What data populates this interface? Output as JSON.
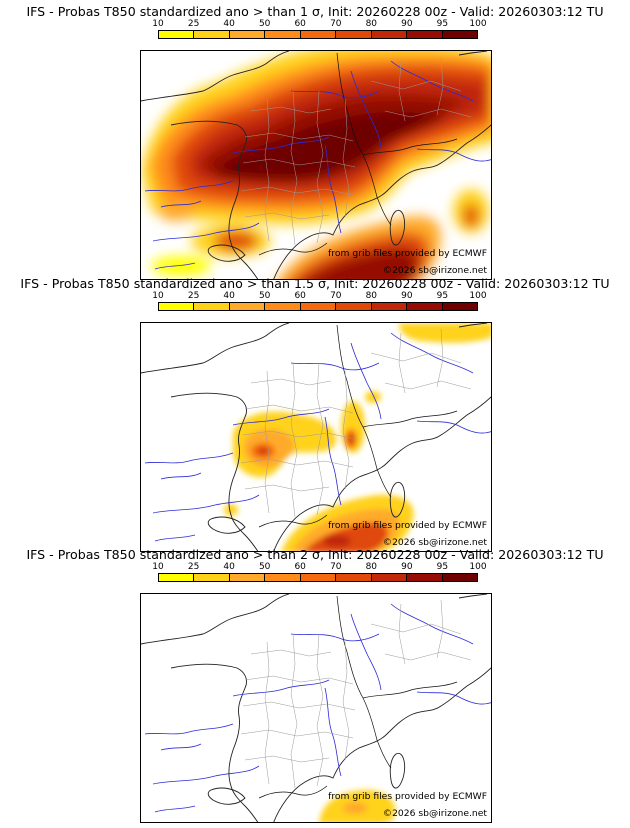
{
  "scale": {
    "labels": [
      "10",
      "25",
      "40",
      "50",
      "60",
      "70",
      "80",
      "90",
      "95",
      "100"
    ],
    "colors": [
      "#ffff00",
      "#ffd21a",
      "#ffaa2a",
      "#ff8c1a",
      "#f56a10",
      "#e04a08",
      "#c02808",
      "#960c04",
      "#6e0000"
    ]
  },
  "panels": [
    {
      "title": "IFS - Probas T850  standardized ano > than 1 σ, Init: 20260228 00z - Valid: 20260303:12 TU",
      "credit_source": "from grib files provided by ECMWF",
      "credit_copyright": "©2026 sb@irizone.net"
    },
    {
      "title": "IFS - Probas T850  standardized ano > than 1.5 σ, Init: 20260228 00z - Valid: 20260303:12 TU",
      "credit_source": "from grib files provided by ECMWF",
      "credit_copyright": "©2026 sb@irizone.net"
    },
    {
      "title": "IFS - Probas T850  standardized ano > than 2 σ, Init: 20260228 00z - Valid: 20260303:12 TU",
      "credit_source": "from grib files provided by ECMWF",
      "credit_copyright": "©2026 sb@irizone.net"
    }
  ]
}
